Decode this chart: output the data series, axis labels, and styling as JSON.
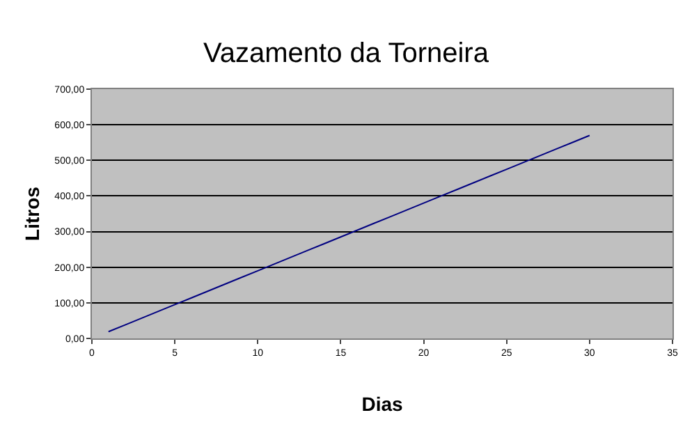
{
  "chart_data": {
    "type": "line",
    "title": "Vazamento da Torneira",
    "xlabel": "Dias",
    "ylabel": "Litros",
    "x": [
      1,
      2,
      3,
      4,
      5,
      6,
      7,
      8,
      9,
      10,
      11,
      12,
      13,
      14,
      15,
      16,
      17,
      18,
      19,
      20,
      21,
      22,
      23,
      24,
      25,
      26,
      27,
      28,
      29,
      30
    ],
    "series": [
      {
        "color": "#000080",
        "values": [
          19,
          38,
          57,
          76,
          95,
          114,
          133,
          152,
          171,
          190,
          209,
          228,
          247,
          266,
          285,
          304,
          323,
          342,
          361,
          380,
          399,
          418,
          437,
          456,
          475,
          494,
          513,
          532,
          551,
          570
        ]
      }
    ],
    "xlim": [
      0,
      35
    ],
    "xticks": [
      0,
      5,
      10,
      15,
      20,
      25,
      30,
      35
    ],
    "ylim": [
      0,
      700
    ],
    "yticks": [
      {
        "value": 0,
        "label": "0,00"
      },
      {
        "value": 100,
        "label": "100,00"
      },
      {
        "value": 200,
        "label": "200,00"
      },
      {
        "value": 300,
        "label": "300,00"
      },
      {
        "value": 400,
        "label": "400,00"
      },
      {
        "value": 500,
        "label": "500,00"
      },
      {
        "value": 600,
        "label": "600,00"
      },
      {
        "value": 700,
        "label": "700,00"
      }
    ],
    "grid": "y",
    "marker": "none",
    "line_style": "solid"
  }
}
